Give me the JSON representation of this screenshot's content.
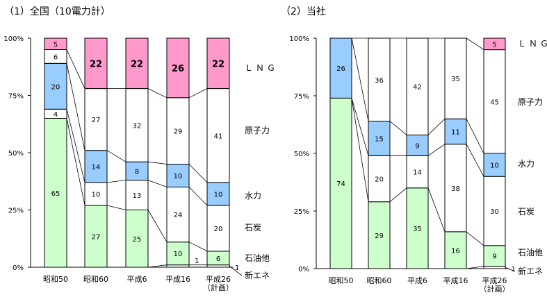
{
  "colors": {
    "LNG": "#ff99cc",
    "原子力": "#ffffff",
    "水力": "#99ccff",
    "石炭": "#ffffff",
    "石油他": "#ccffcc",
    "新エネ": "#ffffff",
    "outline": "#000000"
  },
  "chart_data": [
    {
      "type": "bar",
      "stacked": true,
      "title": "（1）全国（10電力計）",
      "categories": [
        "昭和50",
        "昭和60",
        "平成6",
        "平成16",
        "平成26\n（計画）"
      ],
      "ylim": [
        0,
        100
      ],
      "yticks": [
        "0%",
        "25%",
        "50%",
        "75%",
        "100%"
      ],
      "series": [
        {
          "name": "新エネ",
          "values": [
            0,
            0,
            0,
            1,
            1
          ]
        },
        {
          "name": "石油他",
          "values": [
            65,
            27,
            25,
            10,
            6
          ]
        },
        {
          "name": "石炭",
          "values": [
            4,
            10,
            13,
            24,
            20
          ]
        },
        {
          "name": "水力",
          "values": [
            20,
            14,
            8,
            10,
            10
          ]
        },
        {
          "name": "原子力",
          "values": [
            6,
            27,
            32,
            29,
            41
          ]
        },
        {
          "name": "LNG",
          "values": [
            5,
            22,
            22,
            26,
            22
          ]
        }
      ],
      "legend_labels": [
        "ＬＮＧ",
        "原子力",
        "水力",
        "石炭",
        "石油他",
        "新エネ"
      ]
    },
    {
      "type": "bar",
      "stacked": true,
      "title": "（2）当社",
      "categories": [
        "昭和50",
        "昭和60",
        "平成6",
        "平成16",
        "平成26\n（計画）"
      ],
      "ylim": [
        0,
        100
      ],
      "yticks": [
        "0%",
        "25%",
        "50%",
        "75%",
        "100%"
      ],
      "series": [
        {
          "name": "新エネ",
          "values": [
            0,
            0,
            0,
            0,
            1
          ]
        },
        {
          "name": "石油他",
          "values": [
            74,
            29,
            35,
            16,
            9
          ]
        },
        {
          "name": "石炭",
          "values": [
            0,
            20,
            14,
            38,
            30
          ]
        },
        {
          "name": "水力",
          "values": [
            26,
            15,
            9,
            11,
            10
          ]
        },
        {
          "name": "原子力",
          "values": [
            0,
            36,
            42,
            35,
            45
          ]
        },
        {
          "name": "LNG",
          "values": [
            0,
            0,
            0,
            0,
            5
          ]
        }
      ],
      "legend_labels": [
        "ＬＮＧ",
        "原子力",
        "水力",
        "石炭",
        "石油他",
        "新エネ"
      ]
    }
  ]
}
